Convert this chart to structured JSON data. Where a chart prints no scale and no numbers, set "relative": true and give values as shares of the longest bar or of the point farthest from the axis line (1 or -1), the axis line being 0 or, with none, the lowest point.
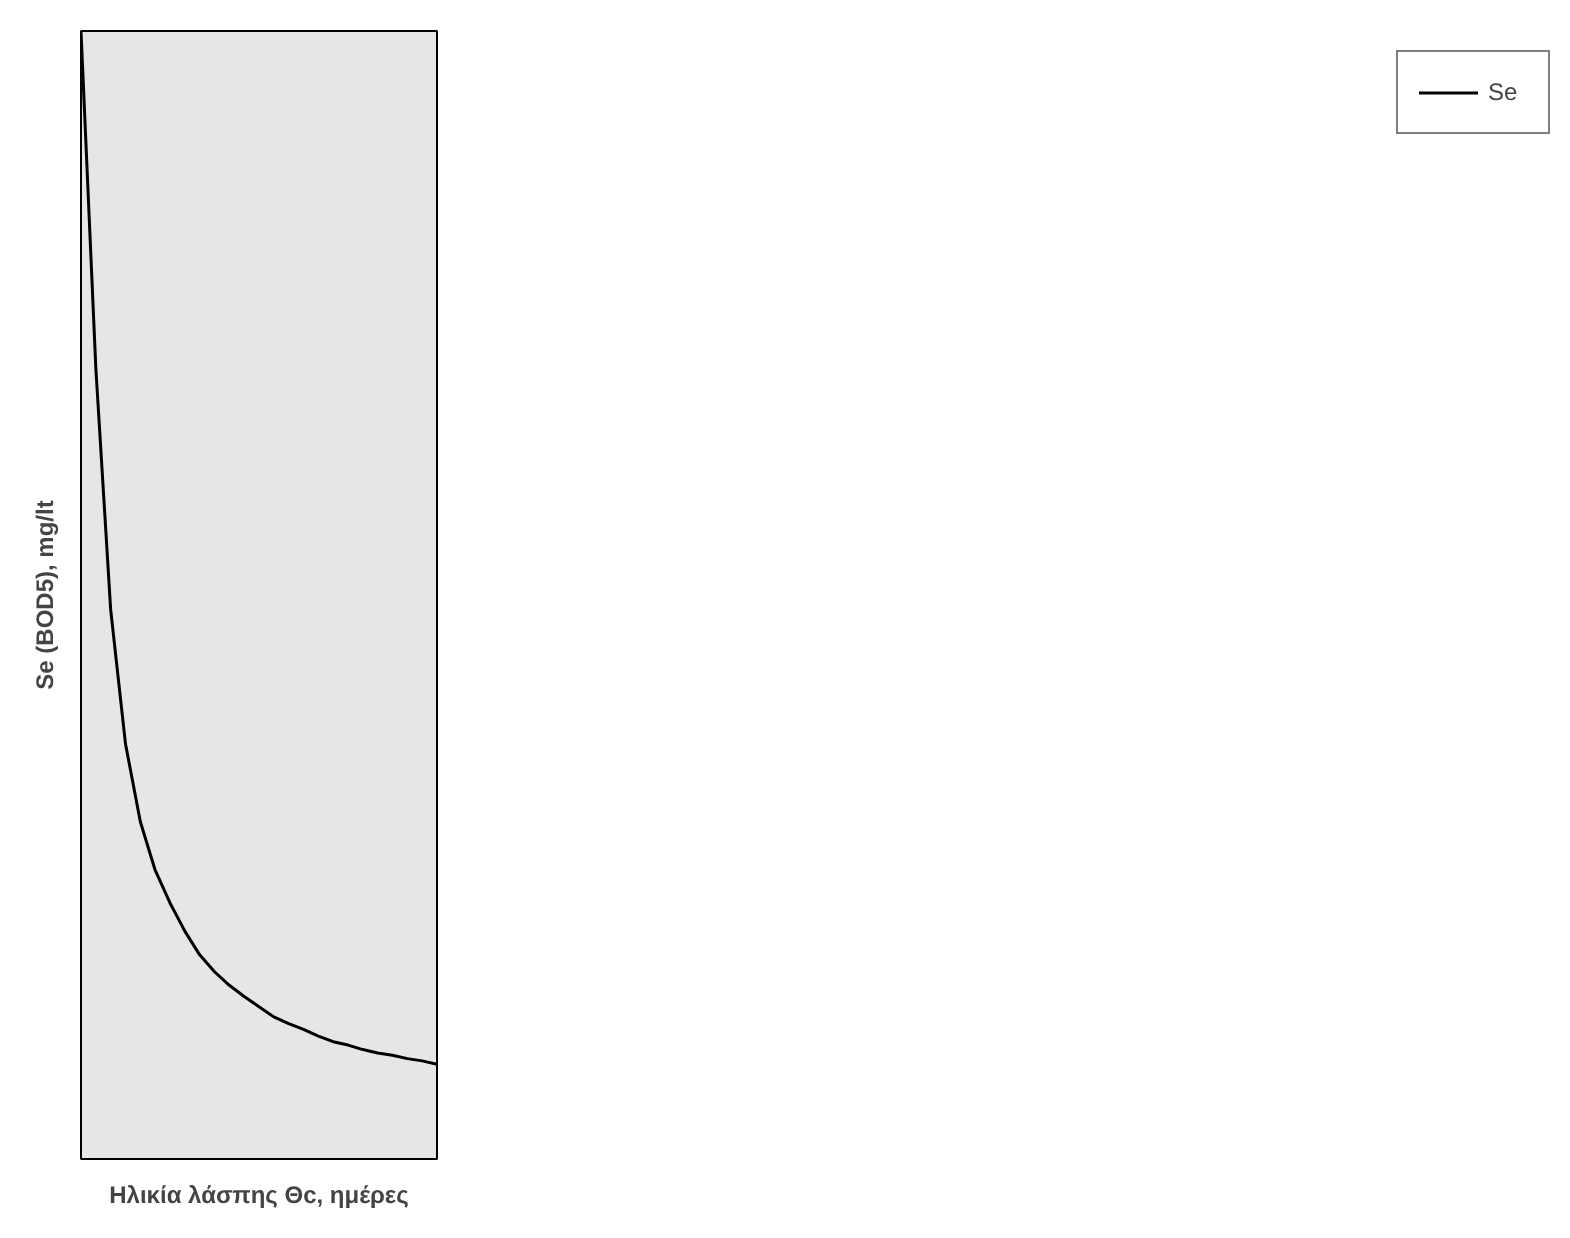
{
  "chart_data": {
    "type": "line",
    "xlabel": "Ηλικία λάσπης Θc, ημέρες",
    "ylabel": "Se (BOD5), mg/lt",
    "relative": true,
    "legend": "right",
    "grid": false,
    "tick_labels": false,
    "marker": "none",
    "line_style": "solid",
    "categories": [
      null,
      null,
      null,
      null,
      null,
      null,
      null,
      null,
      null,
      null,
      null,
      null,
      null,
      null,
      null,
      null,
      null,
      null,
      null,
      null,
      null,
      null,
      null,
      null,
      null
    ],
    "series": [
      {
        "name": "Se",
        "color": "#000000",
        "values": [
          1.0,
          0.701,
          0.487,
          0.368,
          0.299,
          0.256,
          0.227,
          0.202,
          0.181,
          0.166,
          0.154,
          0.144,
          0.135,
          0.126,
          0.12,
          0.115,
          0.109,
          0.104,
          0.101,
          0.097,
          0.094,
          0.092,
          0.089,
          0.087,
          0.084
        ]
      }
    ]
  }
}
